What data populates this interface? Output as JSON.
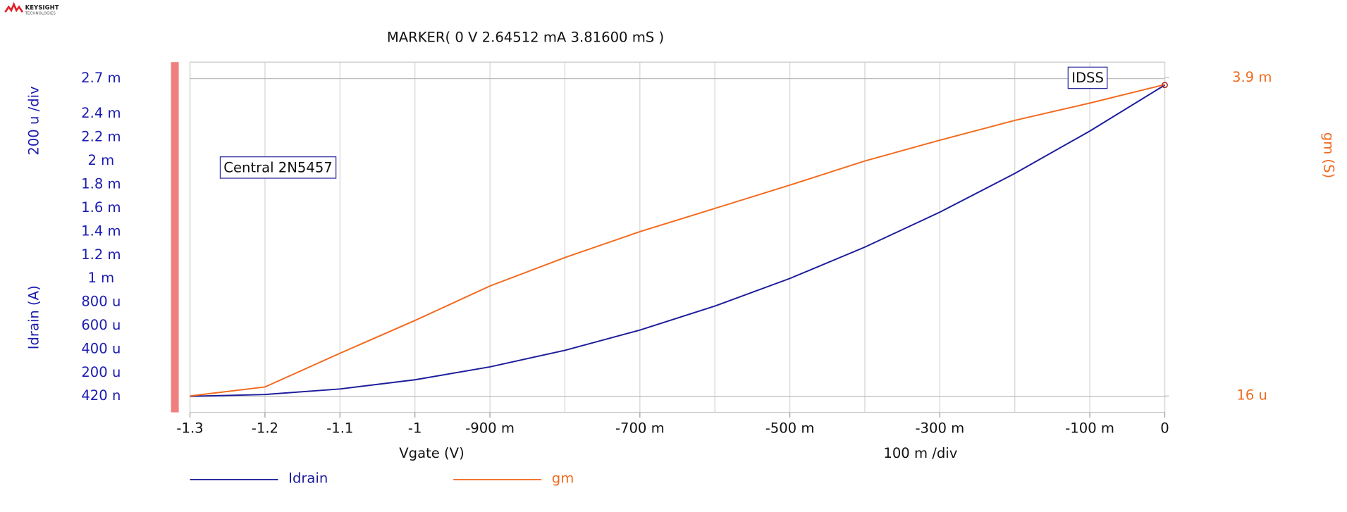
{
  "logo": {
    "name": "KEYSIGHT",
    "sub": "TECHNOLOGIES"
  },
  "chart_data": {
    "type": "line",
    "marker_text": "MARKER(  0 V   2.64512 mA  3.81600 mS )",
    "x_label": "Vgate (V)",
    "x_div": "100 m /div",
    "y_label": "Idrain (A)",
    "y_div": "200 u /div",
    "y2_label": "gm (S)",
    "annotations": [
      "Central 2N5457",
      "IDSS"
    ],
    "x": [
      -1.3,
      -1.2,
      -1.1,
      -1.0,
      -0.9,
      -0.8,
      -0.7,
      -0.6,
      -0.5,
      -0.4,
      -0.3,
      -0.2,
      -0.1,
      0
    ],
    "series": [
      {
        "name": "Idrain",
        "color": "#1c1c9c",
        "values": [
          4.2e-07,
          1.57e-05,
          6.26e-05,
          0.0001409,
          0.0002504,
          0.0003913,
          0.0005634,
          0.000767,
          0.0010017,
          0.001268,
          0.001565,
          0.001894,
          0.002254,
          0.00264512
        ]
      },
      {
        "name": "gm",
        "color": "#f26a1e",
        "axis": "y2",
        "values": [
          1.6e-05,
          0.000126,
          0.000537,
          0.000937,
          0.001358,
          0.001705,
          0.002021,
          0.002305,
          0.002589,
          0.002884,
          0.003137,
          0.003379,
          0.00359,
          0.003816
        ]
      }
    ],
    "xlim": [
      -1.3,
      0
    ],
    "xticks": [
      -1.3,
      -1.2,
      -1.1,
      -1,
      {
        "value": -0.9,
        "label": "-900 m"
      },
      {
        "value": -0.7,
        "label": "-700 m"
      },
      {
        "value": -0.5,
        "label": "-500 m"
      },
      {
        "value": -0.3,
        "label": "-300 m"
      },
      {
        "value": -0.1,
        "label": "-100 m"
      },
      0
    ],
    "x_minor_ticks": [
      -0.8,
      -0.6,
      -0.4,
      -0.2
    ],
    "ylim": [
      -0.000136,
      0.00284
    ],
    "yticks": [
      {
        "value": 0.0027,
        "label": "2.7 m"
      },
      {
        "value": 0.0024,
        "label": "2.4 m"
      },
      {
        "value": 0.0022,
        "label": "2.2 m"
      },
      {
        "value": 0.002,
        "label": "2 m"
      },
      {
        "value": 0.0018,
        "label": "1.8 m"
      },
      {
        "value": 0.0016,
        "label": "1.6 m"
      },
      {
        "value": 0.0014,
        "label": "1.4 m"
      },
      {
        "value": 0.0012,
        "label": "1.2 m"
      },
      {
        "value": 0.001,
        "label": "1 m"
      },
      {
        "value": 0.0008,
        "label": "800 u"
      },
      {
        "value": 0.0006,
        "label": "600 u"
      },
      {
        "value": 0.0004,
        "label": "400 u"
      },
      {
        "value": 0.0002,
        "label": "200 u"
      },
      {
        "value": 4.2e-07,
        "label": "420 n"
      }
    ],
    "y2lim": [
      -0.000184,
      0.00409
    ],
    "y2ticks": [
      {
        "value": 0.0039,
        "label": "3.9 m"
      },
      {
        "value": 1.6e-05,
        "label": "16 u"
      }
    ],
    "grid": true
  }
}
